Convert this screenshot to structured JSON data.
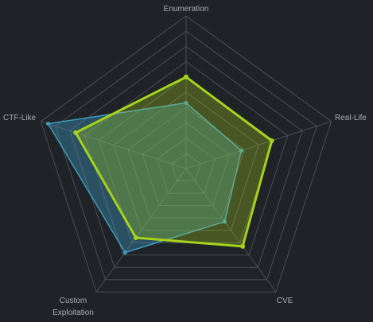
{
  "colors": {
    "background": "#1f2227",
    "grid": "#4a4e55",
    "series_blue": "#3e9cc0",
    "series_green": "#a6d21c"
  },
  "chart_data": {
    "type": "radar",
    "title": "",
    "axes": [
      "Enumeration",
      "Real-Life",
      "CVE",
      "Custom Exploitation",
      "CTF-Like"
    ],
    "range": [
      0,
      10
    ],
    "grid_levels": 10,
    "grid": true,
    "legend": "none",
    "series": [
      {
        "color": "#3e9cc0",
        "values": [
          4.3,
          3.8,
          4.3,
          6.8,
          9.5
        ]
      },
      {
        "color": "#a6d21c",
        "values": [
          6.0,
          5.9,
          6.3,
          5.6,
          7.6
        ]
      }
    ]
  }
}
